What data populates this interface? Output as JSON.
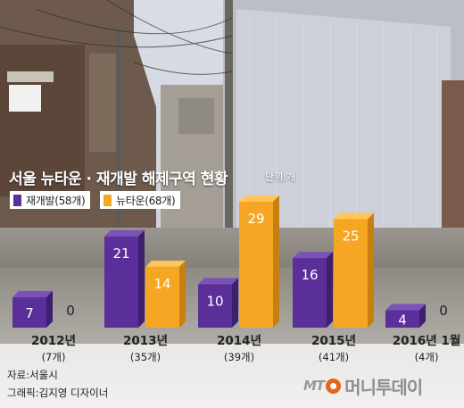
{
  "title": "서울 뉴타운 · 재개발 해제구역 현황",
  "unit": "단위:개",
  "legend": [
    {
      "label": "재개발(58개)",
      "color": "#5a2f9a"
    },
    {
      "label": "뉴타운(68개)",
      "color": "#f5a623"
    }
  ],
  "source": "자료:서울시",
  "credit": "그래픽:김지영 디자이너",
  "logo": {
    "mark": "MT",
    "name": "머니투데이"
  },
  "colors": {
    "redevelopment": "#5a2f9a",
    "newtown": "#f5a623",
    "logo_accent": "#e3671a"
  },
  "chart_data": {
    "type": "bar",
    "title": "서울 뉴타운 · 재개발 해제구역 현황",
    "unit": "단위:개",
    "categories": [
      "2012년",
      "2013년",
      "2014년",
      "2015년",
      "2016년 1월"
    ],
    "category_totals": [
      "(7개)",
      "(35개)",
      "(39개)",
      "(41개)",
      "(4개)"
    ],
    "series": [
      {
        "name": "재개발(58개)",
        "values": [
          7,
          21,
          10,
          16,
          4
        ]
      },
      {
        "name": "뉴타운(68개)",
        "values": [
          0,
          14,
          29,
          25,
          0
        ]
      }
    ],
    "ylim": [
      0,
      30
    ],
    "grid": false,
    "legend": "top-left"
  }
}
